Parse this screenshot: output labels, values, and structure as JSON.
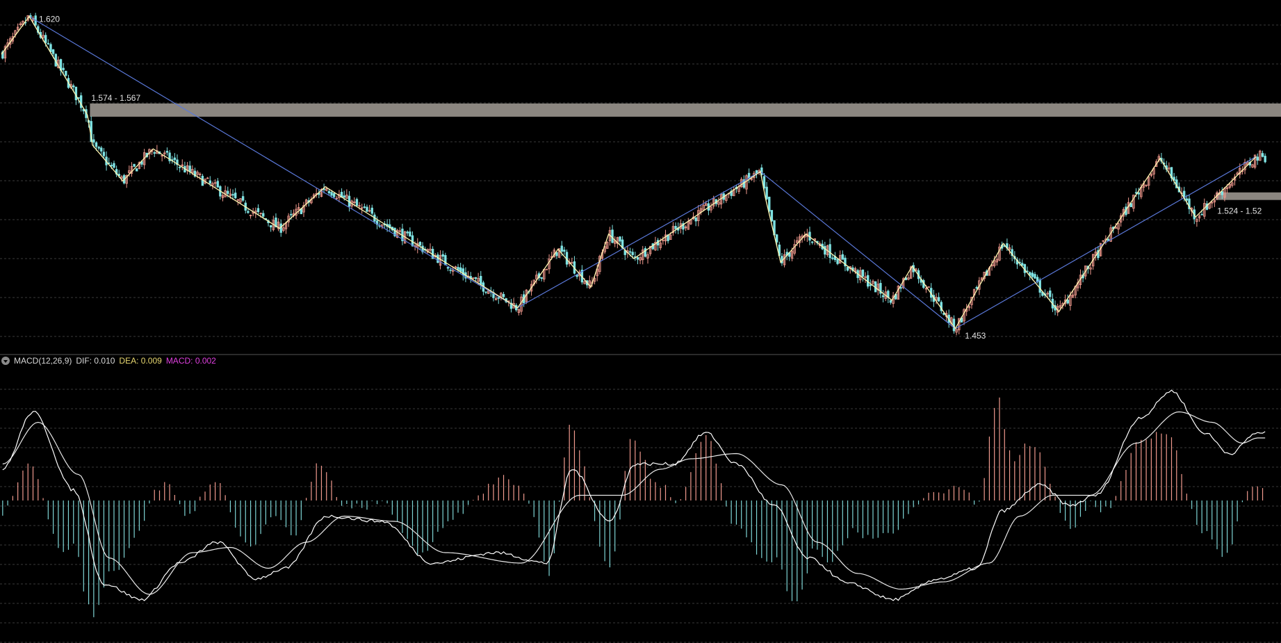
{
  "colors": {
    "background": "#000000",
    "grid": "#3a3a3a",
    "up": "#f19a8e",
    "down": "#7fe3e3",
    "zigzag": "#fff5b0",
    "trend": "#5a78d8",
    "band": "#8b8680",
    "dif": "#ffffff",
    "dea": "#e8e8e8",
    "hist_up": "#f19a8e",
    "hist_down": "#7fd6d6",
    "label_dea": "#e8d870",
    "label_macd": "#e040e0"
  },
  "macd_header": {
    "indicator": "MACD(12,26,9)",
    "dif_label": "DIF:",
    "dif_value": "0.010",
    "dea_label": "DEA:",
    "dea_value": "0.009",
    "macd_label": "MACD:",
    "macd_value": "0.002"
  },
  "chart_data": [
    {
      "type": "candlestick",
      "panel": "price",
      "price_range": [
        1.445,
        1.625
      ],
      "annotations": {
        "high_label": "1.620",
        "low_label": "1.453",
        "band_upper_label": "1.574 - 1.567",
        "band_lower_label": "1.524 - 1.52"
      },
      "bands": [
        {
          "name": "resistance",
          "top": 1.574,
          "bottom": 1.567,
          "start_bar": 35
        },
        {
          "name": "support",
          "top": 1.527,
          "bottom": 1.523,
          "start_bar": 480
        }
      ],
      "zigzag": [
        [
          0,
          1.6
        ],
        [
          11,
          1.62
        ],
        [
          34,
          1.568
        ],
        [
          36,
          1.552
        ],
        [
          48,
          1.533
        ],
        [
          60,
          1.55
        ],
        [
          110,
          1.508
        ],
        [
          128,
          1.53
        ],
        [
          204,
          1.466
        ],
        [
          220,
          1.497
        ],
        [
          233,
          1.477
        ],
        [
          240,
          1.505
        ],
        [
          250,
          1.492
        ],
        [
          300,
          1.538
        ],
        [
          302,
          1.524
        ],
        [
          308,
          1.49
        ],
        [
          318,
          1.505
        ],
        [
          352,
          1.47
        ],
        [
          360,
          1.488
        ],
        [
          377,
          1.455
        ],
        [
          396,
          1.5
        ],
        [
          418,
          1.464
        ],
        [
          458,
          1.545
        ],
        [
          472,
          1.514
        ],
        [
          496,
          1.546
        ]
      ],
      "trendlines": [
        [
          [
            11,
            1.62
          ],
          [
            204,
            1.466
          ]
        ],
        [
          [
            204,
            1.466
          ],
          [
            300,
            1.538
          ]
        ],
        [
          [
            300,
            1.538
          ],
          [
            377,
            1.455
          ]
        ],
        [
          [
            377,
            1.455
          ],
          [
            496,
            1.546
          ]
        ]
      ],
      "bar_count": 500,
      "seed": 7
    },
    {
      "type": "macd",
      "panel": "indicator",
      "value_range": [
        -0.013,
        0.012
      ],
      "zero_value": 0,
      "dif_keypoints": [
        [
          0,
          0.003
        ],
        [
          12,
          0.0085
        ],
        [
          28,
          0.001
        ],
        [
          40,
          -0.008
        ],
        [
          55,
          -0.0095
        ],
        [
          70,
          -0.006
        ],
        [
          85,
          -0.004
        ],
        [
          100,
          -0.0075
        ],
        [
          112,
          -0.0065
        ],
        [
          128,
          -0.0015
        ],
        [
          150,
          -0.002
        ],
        [
          170,
          -0.006
        ],
        [
          195,
          -0.005
        ],
        [
          215,
          -0.006
        ],
        [
          225,
          0.003
        ],
        [
          240,
          -0.002
        ],
        [
          250,
          0.0035
        ],
        [
          265,
          0.0035
        ],
        [
          278,
          0.0065
        ],
        [
          290,
          0.0035
        ],
        [
          305,
          -0.0005
        ],
        [
          318,
          -0.0055
        ],
        [
          335,
          -0.008
        ],
        [
          352,
          -0.0095
        ],
        [
          370,
          -0.0075
        ],
        [
          385,
          -0.0065
        ],
        [
          395,
          -0.001
        ],
        [
          410,
          0.0015
        ],
        [
          422,
          -0.0005
        ],
        [
          432,
          0.0005
        ],
        [
          450,
          0.008
        ],
        [
          462,
          0.0105
        ],
        [
          475,
          0.0065
        ],
        [
          485,
          0.0045
        ],
        [
          496,
          0.0065
        ]
      ],
      "dea_keypoints": [
        [
          0,
          0.0035
        ],
        [
          14,
          0.0075
        ],
        [
          30,
          0.0025
        ],
        [
          42,
          -0.0055
        ],
        [
          58,
          -0.009
        ],
        [
          75,
          -0.005
        ],
        [
          90,
          -0.0045
        ],
        [
          105,
          -0.0065
        ],
        [
          120,
          -0.004
        ],
        [
          135,
          -0.0015
        ],
        [
          155,
          -0.002
        ],
        [
          175,
          -0.005
        ],
        [
          205,
          -0.006
        ],
        [
          228,
          0.0005
        ],
        [
          245,
          0.0005
        ],
        [
          260,
          0.003
        ],
        [
          272,
          0.004
        ],
        [
          290,
          0.0045
        ],
        [
          308,
          0.0015
        ],
        [
          322,
          -0.004
        ],
        [
          338,
          -0.007
        ],
        [
          355,
          -0.0085
        ],
        [
          372,
          -0.0078
        ],
        [
          390,
          -0.006
        ],
        [
          402,
          -0.0015
        ],
        [
          415,
          0.0005
        ],
        [
          430,
          0.0005
        ],
        [
          448,
          0.0055
        ],
        [
          465,
          0.0085
        ],
        [
          478,
          0.0075
        ],
        [
          490,
          0.0055
        ],
        [
          496,
          0.006
        ]
      ]
    }
  ]
}
